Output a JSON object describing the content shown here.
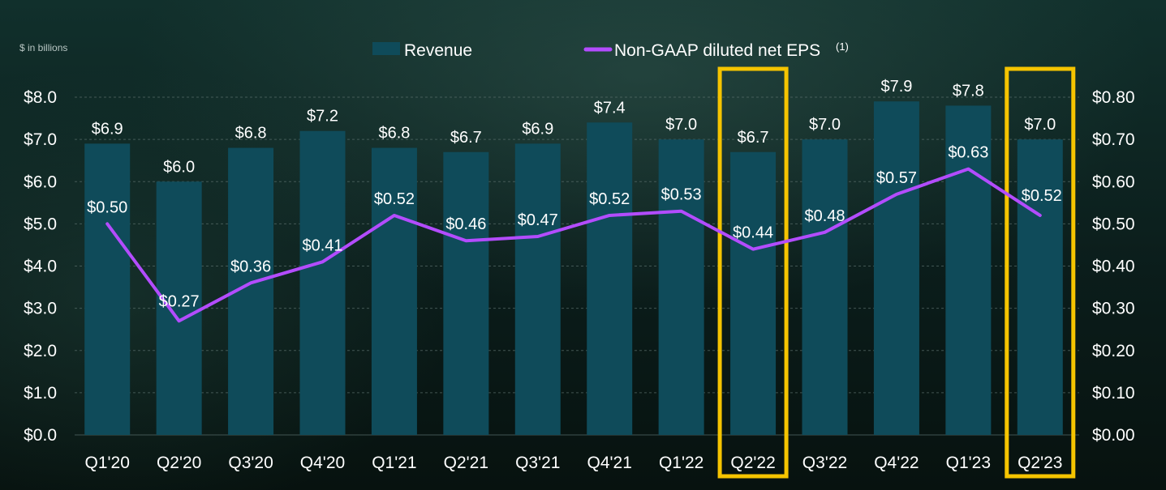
{
  "unit_note": "$ in billions",
  "colors": {
    "bar": "#0f4b5a",
    "line": "#b34cff",
    "highlight": "#f5c400",
    "grid": "#5a6f6c",
    "text": "#ffffff"
  },
  "chart_data": {
    "type": "bar",
    "categories": [
      "Q1'20",
      "Q2'20",
      "Q3'20",
      "Q4'20",
      "Q1'21",
      "Q2'21",
      "Q3'21",
      "Q4'21",
      "Q1'22",
      "Q2'22",
      "Q3'22",
      "Q4'22",
      "Q1'23",
      "Q2'23"
    ],
    "series": [
      {
        "name": "Revenue",
        "type": "bar",
        "axis": "left",
        "values": [
          6.9,
          6.0,
          6.8,
          7.2,
          6.8,
          6.7,
          6.9,
          7.4,
          7.0,
          6.7,
          7.0,
          7.9,
          7.8,
          7.0
        ],
        "labels": [
          "$6.9",
          "$6.0",
          "$6.8",
          "$7.2",
          "$6.8",
          "$6.7",
          "$6.9",
          "$7.4",
          "$7.0",
          "$6.7",
          "$7.0",
          "$7.9",
          "$7.8",
          "$7.0"
        ]
      },
      {
        "name": "Non-GAAP diluted net EPS",
        "name_superscript": "(1)",
        "type": "line",
        "axis": "right",
        "values": [
          0.5,
          0.27,
          0.36,
          0.41,
          0.52,
          0.46,
          0.47,
          0.52,
          0.53,
          0.44,
          0.48,
          0.57,
          0.63,
          0.52
        ],
        "labels": [
          "$0.50",
          "$0.27",
          "$0.36",
          "$0.41",
          "$0.52",
          "$0.46",
          "$0.47",
          "$0.52",
          "$0.53",
          "$0.44",
          "$0.48",
          "$0.57",
          "$0.63",
          "$0.52"
        ]
      }
    ],
    "y_left": {
      "range": [
        0,
        8
      ],
      "ticks": [
        0,
        1,
        2,
        3,
        4,
        5,
        6,
        7,
        8
      ],
      "tick_labels": [
        "$0.0",
        "$1.0",
        "$2.0",
        "$3.0",
        "$4.0",
        "$5.0",
        "$6.0",
        "$7.0",
        "$8.0"
      ]
    },
    "y_right": {
      "range": [
        0,
        0.8
      ],
      "ticks": [
        0,
        0.1,
        0.2,
        0.3,
        0.4,
        0.5,
        0.6,
        0.7,
        0.8
      ],
      "tick_labels": [
        "$0.00",
        "$0.10",
        "$0.20",
        "$0.30",
        "$0.40",
        "$0.50",
        "$0.60",
        "$0.70",
        "$0.80"
      ]
    },
    "highlighted_categories": [
      "Q2'22",
      "Q2'23"
    ],
    "grid": true,
    "legend": "top-center"
  }
}
